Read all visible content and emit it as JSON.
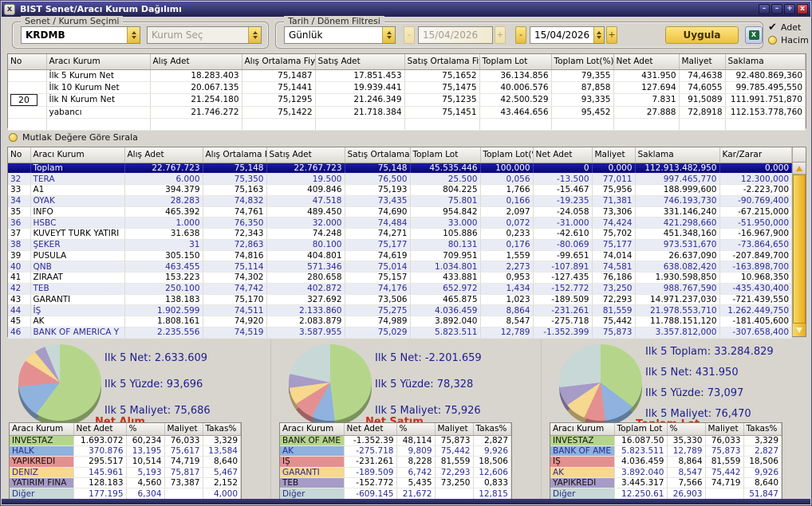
{
  "window": {
    "title": "BIST Senet/Aracı Kurum Dağılımı",
    "controls": {
      "close_left": "x",
      "shade": "–",
      "minimize": "–",
      "maximize": "+",
      "close": "x"
    }
  },
  "icons": {
    "excel_glyph": "X"
  },
  "toolbar": {
    "group_senet_label": "Senet / Kurum Seçimi",
    "senet_value": "KRDMB",
    "kurum_placeholder": "Kurum Seç",
    "group_tarih_label": "Tarih / Dönem Filtresi",
    "period_value": "Günlük",
    "minus_label": "-",
    "plus_label": "+",
    "date_from": "15/04/2026",
    "date_to": "15/04/2026",
    "apply_label": "Uygula",
    "adet_label": "Adet",
    "adet_check": "✔",
    "hacim_label": "Hacim"
  },
  "summary_table": {
    "columns": [
      "No",
      "Aracı Kurum",
      "Alış Adet",
      "Alış Ortalama Fiyat",
      "Satış Adet",
      "Satış Ortalama Fiyat",
      "Toplam Lot",
      "Toplam Lot(%)",
      "Net Adet",
      "Maliyet",
      "Saklama"
    ],
    "n_value": "20",
    "rows": [
      [
        "",
        "İlk 5 Kurum Net",
        "18.283.403",
        "75,1487",
        "17.851.453",
        "75,1652",
        "36.134.856",
        "79,355",
        "431.950",
        "74,4638",
        "92.480.869,360"
      ],
      [
        "",
        "İlk 10 Kurum Net",
        "20.067.135",
        "75,1441",
        "19.939.441",
        "75,1475",
        "40.006.576",
        "87,858",
        "127.694",
        "74,6055",
        "99.785.495,550"
      ],
      [
        "20",
        "İlk N Kurum Net",
        "21.254.180",
        "75,1295",
        "21.246.349",
        "75,1235",
        "42.500.529",
        "93,335",
        "7.831",
        "91,5089",
        "111.991.751,870"
      ],
      [
        "",
        "yabancı",
        "21.746.272",
        "75,1422",
        "21.718.384",
        "75,1451",
        "43.464.656",
        "95,452",
        "27.888",
        "72,8918",
        "112.153.778,760"
      ]
    ]
  },
  "sort_option_label": "Mutlak Değere Göre Sırala",
  "main_table": {
    "columns": [
      "No",
      "Aracı Kurum",
      "Alış Adet",
      "Alış Ortalama Fiy",
      "Satış Adet",
      "Satış Ortalama Fi",
      "Toplam Lot",
      "Toplam Lot(%",
      "Net Adet",
      "Maliyet",
      "Saklama",
      "Kar/Zarar"
    ],
    "rows": [
      [
        "",
        "Toplam",
        "22.767.723",
        "75,148",
        "22.767.723",
        "75,148",
        "45.535.446",
        "100,000",
        "0",
        "0,000",
        "112.913.482,950",
        "0,000"
      ],
      [
        "32",
        "TERA",
        "6.000",
        "75,350",
        "19.500",
        "76,500",
        "25.500",
        "0,056",
        "-13.500",
        "77,011",
        "997.465,770",
        "12.300,000"
      ],
      [
        "33",
        "A1",
        "394.379",
        "75,163",
        "409.846",
        "75,193",
        "804.225",
        "1,766",
        "-15.467",
        "75,956",
        "188.999,600",
        "-2.223,700"
      ],
      [
        "34",
        "OYAK",
        "28.283",
        "74,832",
        "47.518",
        "73,435",
        "75.801",
        "0,166",
        "-19.235",
        "71,381",
        "746.193,730",
        "-90.769,400"
      ],
      [
        "35",
        "İNFO",
        "465.392",
        "74,761",
        "489.450",
        "74,690",
        "954.842",
        "2,097",
        "-24.058",
        "73,306",
        "331.146,240",
        "-67.215,000"
      ],
      [
        "36",
        "HSBC",
        "1.000",
        "76,350",
        "32.000",
        "74,484",
        "33.000",
        "0,072",
        "-31.000",
        "74,424",
        "421.298,660",
        "-51.950,000"
      ],
      [
        "37",
        "KUVEYT TÜRK YATIRI",
        "31.638",
        "72,343",
        "74.248",
        "74,271",
        "105.886",
        "0,233",
        "-42.610",
        "75,702",
        "451.348,160",
        "-16.967,900"
      ],
      [
        "38",
        "ŞEKER",
        "31",
        "72,863",
        "80.100",
        "75,177",
        "80.131",
        "0,176",
        "-80.069",
        "75,177",
        "973.531,670",
        "-73.864,650"
      ],
      [
        "39",
        "PUSULA",
        "305.150",
        "74,816",
        "404.801",
        "74,619",
        "709.951",
        "1,559",
        "-99.651",
        "74,014",
        "26.637,090",
        "-207.849,700"
      ],
      [
        "40",
        "QNB",
        "463.455",
        "75,114",
        "571.346",
        "75,014",
        "1.034.801",
        "2,273",
        "-107.891",
        "74,581",
        "638.082,420",
        "-163.898,700"
      ],
      [
        "41",
        "ZİRAAT",
        "153.223",
        "74,302",
        "280.658",
        "75,157",
        "433.881",
        "0,953",
        "-127.435",
        "76,186",
        "1.930.598,850",
        "10.968,350"
      ],
      [
        "42",
        "TEB",
        "250.100",
        "74,742",
        "402.872",
        "74,176",
        "652.972",
        "1,434",
        "-152.772",
        "73,250",
        "988.767,590",
        "-435.430,400"
      ],
      [
        "43",
        "GARANTİ",
        "138.183",
        "75,170",
        "327.692",
        "73,506",
        "465.875",
        "1,023",
        "-189.509",
        "72,293",
        "14.971.237,030",
        "-721.439,550"
      ],
      [
        "44",
        "İŞ",
        "1.902.599",
        "74,511",
        "2.133.860",
        "75,275",
        "4.036.459",
        "8,864",
        "-231.261",
        "81,559",
        "21.978.553,710",
        "1.262.449,750"
      ],
      [
        "45",
        "AK",
        "1.808.161",
        "74,920",
        "2.083.879",
        "74,989",
        "3.892.040",
        "8,547",
        "-275.718",
        "75,442",
        "11.788.151,120",
        "-181.405,600"
      ],
      [
        "46",
        "BANK OF AMERICA Y",
        "2.235.556",
        "74,519",
        "3.587.955",
        "75,029",
        "5.823.511",
        "12,789",
        "-1.352.399",
        "75,873",
        "3.357.812,000",
        "-307.658,400"
      ]
    ]
  },
  "panels": [
    {
      "label": "Net Alım",
      "stats": [
        "Ilk 5 Net: 2.633.609",
        "Ilk 5 Yüzde: 93,696",
        "Ilk 5 Maliyet: 75,686"
      ],
      "table": {
        "columns": [
          "Aracı Kurum",
          "Net Adet",
          "%",
          "Maliyet",
          "Takas%"
        ],
        "rows": [
          {
            "kurum": "INVESTAZ",
            "color": "#b5d68a",
            "values": [
              "1.693.072",
              "60,234",
              "76,033",
              "3,329"
            ]
          },
          {
            "kurum": "HALK",
            "color": "#8fb3de",
            "values": [
              "370.876",
              "13,195",
              "75,617",
              "13,584"
            ]
          },
          {
            "kurum": "YAPIKREDİ",
            "color": "#e59090",
            "values": [
              "295.517",
              "10,514",
              "74,719",
              "8,640"
            ]
          },
          {
            "kurum": "DENİZ",
            "color": "#f6d88e",
            "values": [
              "145.961",
              "5,193",
              "75,817",
              "5,467"
            ]
          },
          {
            "kurum": "YATIRIM FİNA",
            "color": "#a79bc8",
            "values": [
              "128.183",
              "4,560",
              "73,387",
              "2,152"
            ]
          },
          {
            "kurum": "Diğer",
            "color": "#c7d8d6",
            "values": [
              "177.195",
              "6,304",
              "",
              "4,000"
            ]
          }
        ]
      }
    },
    {
      "label": "Net Satım",
      "stats": [
        "Ilk 5 Net: -2.201.659",
        "Ilk 5 Yüzde: 78,328",
        "Ilk 5 Maliyet: 75,926"
      ],
      "table": {
        "columns": [
          "Aracı Kurum",
          "Net Adet",
          "%",
          "Maliyet",
          "Takas%"
        ],
        "rows": [
          {
            "kurum": "BANK OF AME",
            "color": "#b5d68a",
            "values": [
              "-1.352.39",
              "48,114",
              "75,873",
              "2,827"
            ]
          },
          {
            "kurum": "AK",
            "color": "#8fb3de",
            "values": [
              "-275.718",
              "9,809",
              "75,442",
              "9,926"
            ]
          },
          {
            "kurum": "İŞ",
            "color": "#e59090",
            "values": [
              "-231.261",
              "8,228",
              "81,559",
              "18,506"
            ]
          },
          {
            "kurum": "GARANTİ",
            "color": "#f6d88e",
            "values": [
              "-189.509",
              "6,742",
              "72,293",
              "12,606"
            ]
          },
          {
            "kurum": "TEB",
            "color": "#a79bc8",
            "values": [
              "-152.772",
              "5,435",
              "73,250",
              "0,833"
            ]
          },
          {
            "kurum": "Diğer",
            "color": "#c7d8d6",
            "values": [
              "-609.145",
              "21,672",
              "",
              "12,815"
            ]
          }
        ]
      }
    },
    {
      "label": "Toplam Lot",
      "stats": [
        "Ilk 5 Toplam: 33.284.829",
        "Ilk 5 Net: 431.950",
        "Ilk 5 Yüzde: 73,097",
        "Ilk 5 Maliyet: 76,470"
      ],
      "table": {
        "columns": [
          "Aracı Kurum",
          "Toplam Lot",
          "%",
          "Maliyet",
          "Takas%"
        ],
        "rows": [
          {
            "kurum": "INVESTAZ",
            "color": "#b5d68a",
            "values": [
              "16.087.50",
              "35,330",
              "76,033",
              "3,329"
            ]
          },
          {
            "kurum": "BANK OF AME",
            "color": "#8fb3de",
            "values": [
              "5.823.511",
              "12,789",
              "75,873",
              "2,827"
            ]
          },
          {
            "kurum": "İŞ",
            "color": "#e59090",
            "values": [
              "4.036.459",
              "8,864",
              "81,559",
              "18,506"
            ]
          },
          {
            "kurum": "AK",
            "color": "#f6d88e",
            "values": [
              "3.892.040",
              "8,547",
              "75,442",
              "9,926"
            ]
          },
          {
            "kurum": "YAPIKREDİ",
            "color": "#a79bc8",
            "values": [
              "3.445.317",
              "7,566",
              "74,719",
              "8,640"
            ]
          },
          {
            "kurum": "Diğer",
            "color": "#c7d8d6",
            "values": [
              "12.250.61",
              "26,903",
              "",
              "51,847"
            ]
          }
        ]
      }
    }
  ],
  "chart_data": [
    {
      "type": "pie",
      "title": "Net Alım",
      "labels": [
        "INVESTAZ",
        "HALK",
        "YAPIKREDİ",
        "DENİZ",
        "YATIRIM FİNA",
        "Diğer"
      ],
      "values": [
        60.234,
        13.195,
        10.514,
        5.193,
        4.56,
        6.304
      ],
      "colors": [
        "#b5d68a",
        "#8fb3de",
        "#e59090",
        "#f6d88e",
        "#a79bc8",
        "#c7d8d6"
      ]
    },
    {
      "type": "pie",
      "title": "Net Satım",
      "labels": [
        "BANK OF AME",
        "AK",
        "İŞ",
        "GARANTİ",
        "TEB",
        "Diğer"
      ],
      "values": [
        48.114,
        9.809,
        8.228,
        6.742,
        5.435,
        21.672
      ],
      "colors": [
        "#b5d68a",
        "#8fb3de",
        "#e59090",
        "#f6d88e",
        "#a79bc8",
        "#c7d8d6"
      ]
    },
    {
      "type": "pie",
      "title": "Toplam Lot",
      "labels": [
        "INVESTAZ",
        "BANK OF AME",
        "İŞ",
        "AK",
        "YAPIKREDİ",
        "Diğer"
      ],
      "values": [
        35.33,
        12.789,
        8.864,
        8.547,
        7.566,
        26.903
      ],
      "colors": [
        "#b5d68a",
        "#8fb3de",
        "#e59090",
        "#f6d88e",
        "#a79bc8",
        "#c7d8d6"
      ]
    }
  ]
}
